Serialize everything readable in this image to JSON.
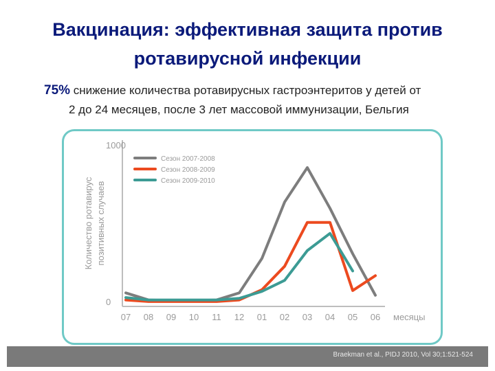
{
  "title_line1": "Вакцинация: эффективная защита против",
  "title_line2": "ротавирусной инфекции",
  "subtitle_pct": "75%",
  "subtitle_rest": "снижение  количества ротавирусных гастроэнтеритов у детей от",
  "subtitle_line2": "2 до 24 месяцев, после 3 лет массовой иммунизации, Бельгия",
  "citation": "Braekman et al., PIDJ 2010, Vol 30;1:521-524",
  "chart_data": {
    "type": "line",
    "categories": [
      "07",
      "08",
      "09",
      "10",
      "11",
      "12",
      "01",
      "02",
      "03",
      "04",
      "05",
      "06"
    ],
    "xlabel": "месяцы",
    "ylabel_line1": "Количество ротавирус",
    "ylabel_line2": "позитивных случаев",
    "ylim": [
      0,
      1000
    ],
    "yticks": [
      "1000",
      "0"
    ],
    "legend_position": "top-left",
    "series": [
      {
        "name": "Сезон 2007-2008",
        "color": "#7d7d7d",
        "values": [
          60,
          15,
          10,
          10,
          15,
          60,
          280,
          640,
          860,
          600,
          310,
          45
        ]
      },
      {
        "name": "Сезон 2008-2009",
        "color": "#ec4a1f",
        "values": [
          15,
          5,
          5,
          5,
          5,
          15,
          80,
          230,
          510,
          510,
          75,
          170
        ]
      },
      {
        "name": "Сезон 2009-2010",
        "color": "#3c9b94",
        "values": [
          30,
          15,
          15,
          15,
          15,
          25,
          70,
          140,
          330,
          440,
          200,
          null
        ]
      }
    ]
  }
}
